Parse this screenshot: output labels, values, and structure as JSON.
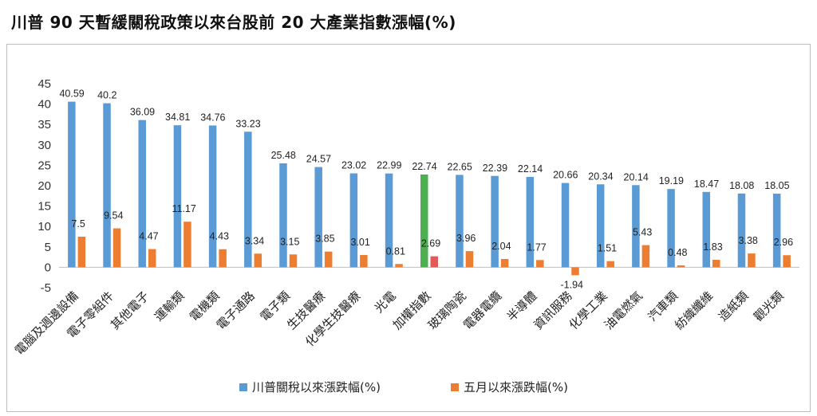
{
  "chart_data": {
    "type": "bar",
    "title": "川普 90 天暫緩關稅政策以來台股前 20 大產業指數漲幅(%)",
    "xlabel": "",
    "ylabel": "",
    "ylim": [
      -5,
      45
    ],
    "yticks": [
      45,
      40,
      35,
      30,
      25,
      20,
      15,
      10,
      5,
      0,
      -5
    ],
    "grid": false,
    "legend_position": "bottom",
    "categories": [
      "電腦及週邊設備",
      "電子零組件",
      "其他電子",
      "運輸類",
      "電機類",
      "電子通路",
      "電子類",
      "生技醫療",
      "化學生技醫療",
      "光電",
      "加權指數",
      "玻璃陶瓷",
      "電器電纜",
      "半導體",
      "資訊服務",
      "化學工業",
      "油電燃氣",
      "汽車類",
      "紡織纖維",
      "造紙類",
      "觀光類"
    ],
    "highlight_category": "加權指數",
    "series": [
      {
        "name": "川普關稅以來漲跌幅(%)",
        "color": "#5b9bd5",
        "highlight_color": "#4caf50",
        "values": [
          40.59,
          40.2,
          36.09,
          34.81,
          34.76,
          33.23,
          25.48,
          24.57,
          23.02,
          22.99,
          22.74,
          22.65,
          22.39,
          22.14,
          20.66,
          20.34,
          20.14,
          19.19,
          18.47,
          18.08,
          18.05
        ],
        "labels": [
          "40.59",
          "40.2",
          "36.09",
          "34.81",
          "34.76",
          "33.23",
          "25.48",
          "24.57",
          "23.02",
          "22.99",
          "22.74",
          "22.65",
          "22.39",
          "22.14",
          "20.66",
          "20.34",
          "20.14",
          "19.19",
          "18.47",
          "18.08",
          "18.05"
        ]
      },
      {
        "name": "五月以來漲跌幅(%)",
        "color": "#ed7d31",
        "highlight_color": "#e05a5a",
        "values": [
          7.5,
          9.54,
          4.47,
          11.17,
          4.43,
          3.34,
          3.15,
          3.85,
          3.01,
          0.81,
          2.69,
          3.96,
          2.04,
          1.77,
          -1.94,
          1.51,
          5.43,
          0.48,
          1.83,
          3.38,
          2.96
        ],
        "labels": [
          "7.5",
          "9.54",
          "4.47",
          "11.17",
          "4.43",
          "3.34",
          "3.15",
          "3.85",
          "3.01",
          "0.81",
          "2.69",
          "3.96",
          "2.04",
          "1.77",
          "-1.94",
          "1.51",
          "5.43",
          "0.48",
          "1.83",
          "3.38",
          "2.96"
        ]
      }
    ]
  }
}
